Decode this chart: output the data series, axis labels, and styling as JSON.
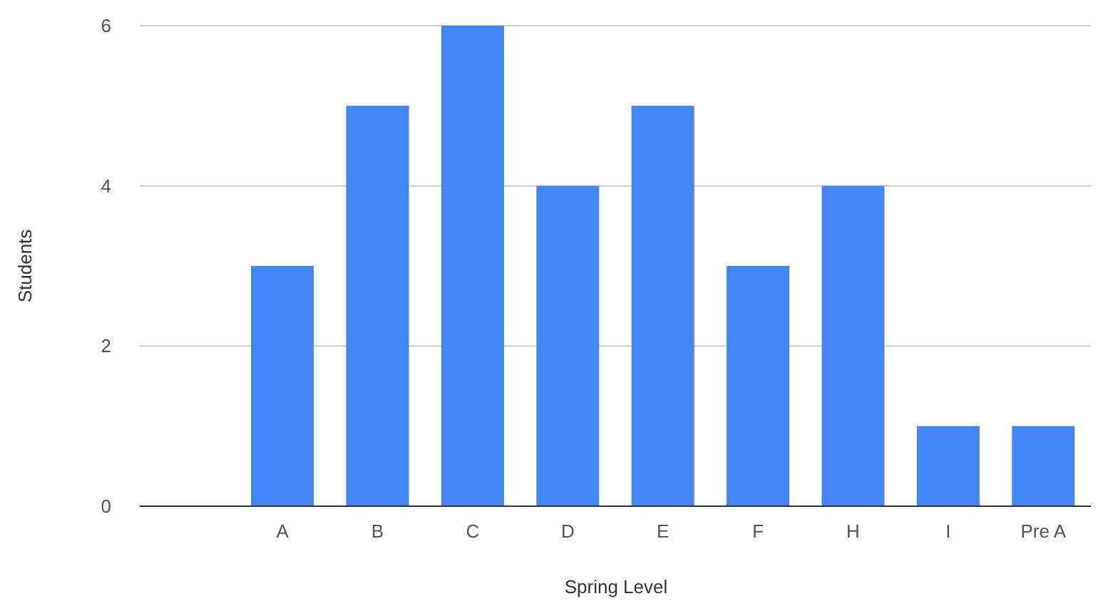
{
  "chart_data": {
    "type": "bar",
    "xlabel": "Spring Level",
    "ylabel": "Students",
    "categories": [
      null,
      "A",
      "B",
      "C",
      "D",
      "E",
      "F",
      "H",
      "I",
      "Pre A"
    ],
    "values": [
      null,
      3,
      5,
      6,
      4,
      5,
      3,
      4,
      1,
      1
    ],
    "color": "#4285f4",
    "ylim": [
      0,
      6
    ],
    "yticks": [
      0,
      2,
      4,
      6
    ],
    "grid": "y"
  }
}
